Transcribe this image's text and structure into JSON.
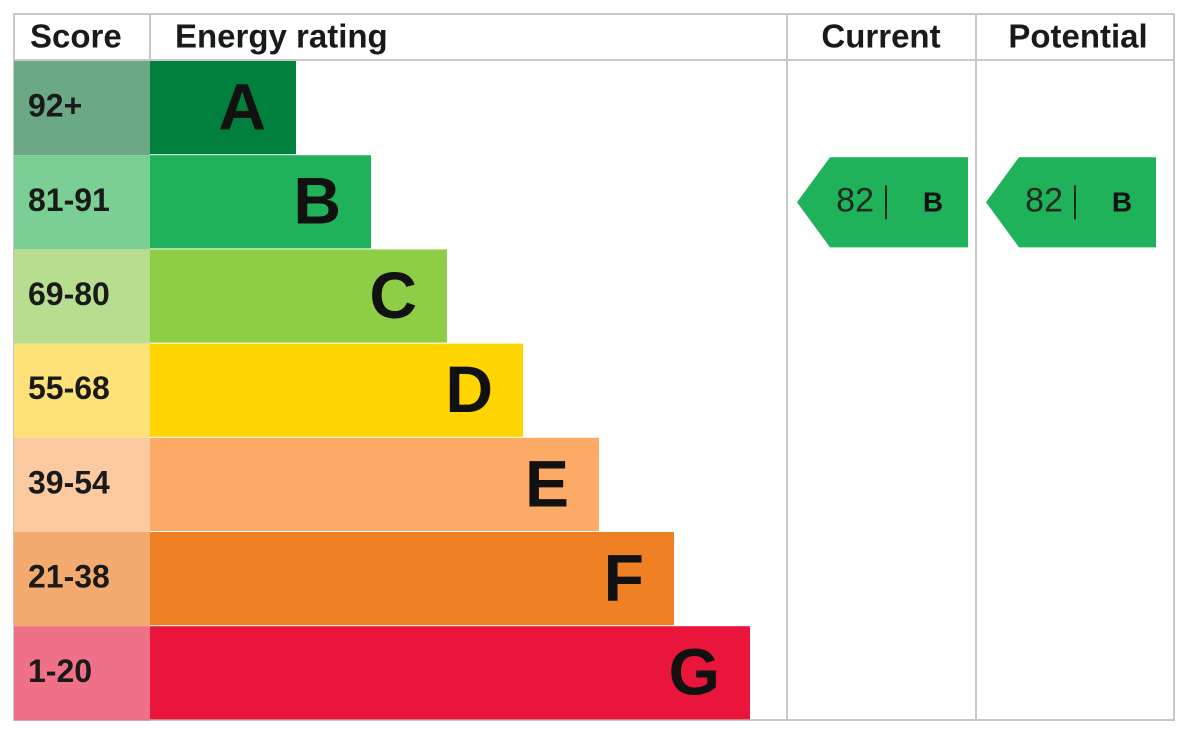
{
  "header": {
    "score": "Score",
    "rating": "Energy rating",
    "current": "Current",
    "potential": "Potential"
  },
  "bands": [
    {
      "score": "92+",
      "letter": "A",
      "color": "#007f3d",
      "score_color": "#6aa886"
    },
    {
      "score": "81-91",
      "letter": "B",
      "color": "#1fb25a",
      "score_color": "#7ccf94"
    },
    {
      "score": "69-80",
      "letter": "C",
      "color": "#8dce46",
      "score_color": "#b7de8f"
    },
    {
      "score": "55-68",
      "letter": "D",
      "color": "#ffd500",
      "score_color": "#fde27a"
    },
    {
      "score": "39-54",
      "letter": "E",
      "color": "#fcaa65",
      "score_color": "#fbcaa0"
    },
    {
      "score": "21-38",
      "letter": "F",
      "color": "#ef8023",
      "score_color": "#f2aa6f"
    },
    {
      "score": "1-20",
      "letter": "G",
      "color": "#e9153b",
      "score_color": "#ee7089"
    }
  ],
  "current": {
    "score": 82,
    "letter": "B"
  },
  "potential": {
    "score": 82,
    "letter": "B"
  }
}
